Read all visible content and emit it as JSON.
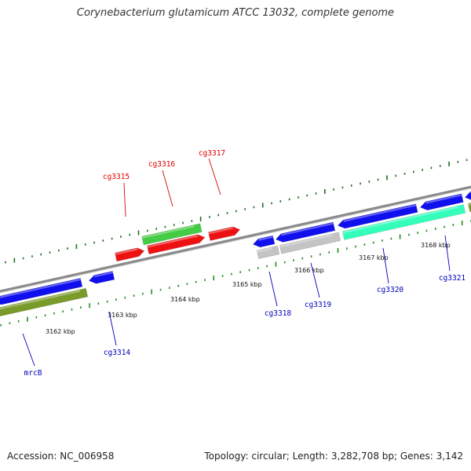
{
  "title": "Corynebacterium glutamicum ATCC 13032, complete genome",
  "footer": {
    "accession": "Accession: NC_006958",
    "stats": "Topology: circular; Length: 3,282,708 bp; Genes: 3,142"
  },
  "colors": {
    "backbone": "#8a8a8a",
    "forward_ticks": "#1e6e1e",
    "reverse_ticks": "#1e8e1e",
    "label_forward": "#dd0000",
    "label_reverse": "#0000bb",
    "cds_forward": "#ee1111",
    "cds_reverse": "#1010ee",
    "rna_forward": "#44cc44",
    "gray_feature": "#c4c4c4",
    "aqua_feature": "#33ffbb",
    "olive_feature": "#7a9a2a"
  },
  "scale_labels": [
    "3162 kbp",
    "3163 kbp",
    "3164 kbp",
    "3165 kbp",
    "3166 kbp",
    "3167 kbp",
    "3168 kbp"
  ],
  "gene_labels": [
    {
      "name": "cg3315",
      "strand": "forward"
    },
    {
      "name": "cg3316",
      "strand": "forward"
    },
    {
      "name": "cg3317",
      "strand": "forward"
    },
    {
      "name": "mrcB",
      "strand": "reverse"
    },
    {
      "name": "cg3314",
      "strand": "reverse"
    },
    {
      "name": "cg3318",
      "strand": "reverse"
    },
    {
      "name": "cg3319",
      "strand": "reverse"
    },
    {
      "name": "cg3320",
      "strand": "reverse"
    },
    {
      "name": "cg3321",
      "strand": "reverse"
    }
  ]
}
